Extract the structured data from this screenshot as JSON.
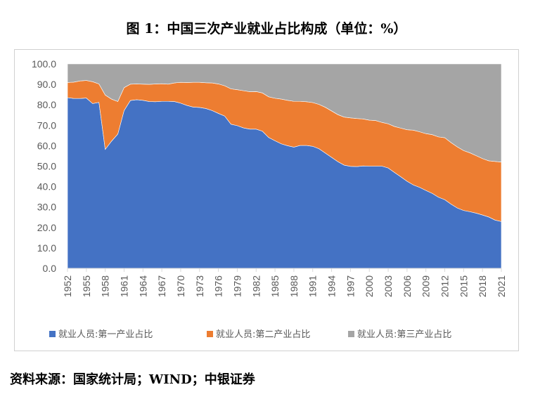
{
  "title": "图 1：中国三次产业就业占比构成（单位：%）",
  "source": "资料来源：国家统计局；WIND；中银证券",
  "chart_data": {
    "type": "area",
    "stacked": true,
    "title": "图 1：中国三次产业就业占比构成（单位：%）",
    "ylim": [
      0,
      100
    ],
    "yticks": [
      "0.0",
      "10.0",
      "20.0",
      "30.0",
      "40.0",
      "50.0",
      "60.0",
      "70.0",
      "80.0",
      "90.0",
      "100.0"
    ],
    "xticks": [
      "1952",
      "1955",
      "1958",
      "1961",
      "1964",
      "1967",
      "1970",
      "1973",
      "1976",
      "1979",
      "1982",
      "1985",
      "1988",
      "1991",
      "1994",
      "1997",
      "2000",
      "2003",
      "2006",
      "2009",
      "2012",
      "2015",
      "2018",
      "2021"
    ],
    "legend_position": "bottom",
    "grid": false,
    "x": [
      1952,
      1953,
      1954,
      1955,
      1956,
      1957,
      1958,
      1959,
      1960,
      1961,
      1962,
      1963,
      1964,
      1965,
      1966,
      1967,
      1968,
      1969,
      1970,
      1971,
      1972,
      1973,
      1974,
      1975,
      1976,
      1977,
      1978,
      1979,
      1980,
      1981,
      1982,
      1983,
      1984,
      1985,
      1986,
      1987,
      1988,
      1989,
      1990,
      1991,
      1992,
      1993,
      1994,
      1995,
      1996,
      1997,
      1998,
      1999,
      2000,
      2001,
      2002,
      2003,
      2004,
      2005,
      2006,
      2007,
      2008,
      2009,
      2010,
      2011,
      2012,
      2013,
      2014,
      2015,
      2016,
      2017,
      2018,
      2019,
      2020,
      2021
    ],
    "series": [
      {
        "name": "就业人员:第一产业占比",
        "color": "#4472C4",
        "values": [
          83.5,
          83.1,
          83.1,
          83.3,
          80.6,
          81.2,
          58.2,
          62.2,
          65.7,
          77.2,
          82.1,
          82.5,
          82.2,
          81.6,
          81.5,
          81.7,
          81.7,
          81.6,
          80.8,
          79.7,
          78.9,
          78.7,
          78.2,
          77.2,
          75.8,
          74.5,
          70.5,
          69.8,
          68.7,
          68.1,
          68.1,
          67.1,
          64.0,
          62.4,
          60.9,
          60.0,
          59.3,
          60.1,
          60.1,
          59.7,
          58.5,
          56.4,
          54.3,
          52.2,
          50.5,
          49.9,
          49.8,
          50.1,
          50.0,
          50.0,
          50.0,
          49.1,
          46.9,
          44.8,
          42.6,
          40.8,
          39.6,
          38.1,
          36.7,
          34.8,
          33.6,
          31.4,
          29.5,
          28.3,
          27.7,
          27.0,
          26.1,
          25.1,
          23.6,
          22.9
        ]
      },
      {
        "name": "就业人员:第二产业占比",
        "color": "#ED7D31",
        "values": [
          7.4,
          8.0,
          8.6,
          8.6,
          10.7,
          9.0,
          26.6,
          20.6,
          15.9,
          11.2,
          8.0,
          7.7,
          7.9,
          8.4,
          8.7,
          8.6,
          8.4,
          9.1,
          10.2,
          11.2,
          12.1,
          12.3,
          12.6,
          13.5,
          14.4,
          14.8,
          17.3,
          17.6,
          18.2,
          18.3,
          18.4,
          18.7,
          19.9,
          20.8,
          21.9,
          22.2,
          22.4,
          21.6,
          21.4,
          21.4,
          21.7,
          22.4,
          22.7,
          23.0,
          23.5,
          23.7,
          23.5,
          23.0,
          22.5,
          22.3,
          21.4,
          21.6,
          22.5,
          23.8,
          25.2,
          26.8,
          27.2,
          27.8,
          28.7,
          29.5,
          30.3,
          30.1,
          29.9,
          29.3,
          28.8,
          28.1,
          27.6,
          27.5,
          28.7,
          29.1
        ]
      },
      {
        "name": "就业人员:第三产业占比",
        "color": "#A5A5A5",
        "values": [
          9.1,
          8.9,
          8.3,
          8.1,
          8.7,
          9.8,
          15.2,
          17.2,
          18.4,
          11.6,
          9.9,
          9.8,
          9.9,
          10.0,
          9.8,
          9.7,
          9.9,
          9.3,
          9.0,
          9.1,
          9.0,
          9.0,
          9.2,
          9.3,
          9.8,
          10.7,
          12.2,
          12.6,
          13.1,
          13.6,
          13.5,
          14.2,
          16.1,
          16.8,
          17.2,
          17.8,
          18.3,
          18.3,
          18.5,
          18.9,
          19.8,
          21.2,
          23.0,
          24.8,
          26.0,
          26.4,
          26.7,
          26.9,
          27.5,
          27.7,
          28.6,
          29.3,
          30.6,
          31.4,
          32.2,
          32.4,
          33.2,
          34.1,
          34.6,
          35.7,
          36.1,
          38.5,
          40.6,
          42.4,
          43.5,
          44.9,
          46.3,
          47.4,
          47.7,
          48.0
        ]
      }
    ]
  }
}
